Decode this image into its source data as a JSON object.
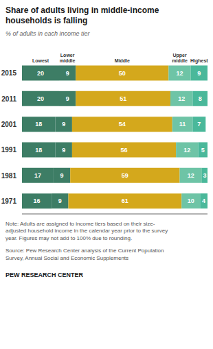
{
  "chart_data": {
    "type": "bar",
    "orientation": "horizontal",
    "stacked": true,
    "data_labels": true,
    "tick_labels": "y",
    "grid": false,
    "title": "Share of adults living in middle-income\nhouseholds is falling",
    "subtitle": "% of adults in each income tier",
    "categories": [
      "2015",
      "2011",
      "2001",
      "1991",
      "1981",
      "1971"
    ],
    "series": [
      {
        "name": "Lowest",
        "color": "#3d7d65",
        "values": [
          20,
          20,
          18,
          18,
          17,
          16
        ]
      },
      {
        "name": "Lower\nmiddle",
        "color": "#3d7d65",
        "values": [
          9,
          9,
          9,
          9,
          9,
          9
        ]
      },
      {
        "name": "Middle",
        "color": "#d4a81c",
        "values": [
          50,
          51,
          54,
          56,
          59,
          61
        ]
      },
      {
        "name": "Upper\nmiddle",
        "color": "#6ec4a6",
        "values": [
          12,
          12,
          11,
          12,
          12,
          10
        ]
      },
      {
        "name": "Highest",
        "color": "#4ab89a",
        "values": [
          9,
          8,
          7,
          5,
          3,
          4
        ]
      }
    ],
    "xlim": [
      0,
      100
    ],
    "note": "Note: Adults are assigned to income tiers based on their size-\nadjusted household income in the calendar year prior to the survey\nyear. Figures may not add to 100% due to rounding.",
    "source": "Source: Pew Research Center analysis of the Current Population\nSurvey, Annual Social and Economic Supplements",
    "footer": "PEW RESEARCH CENTER"
  }
}
